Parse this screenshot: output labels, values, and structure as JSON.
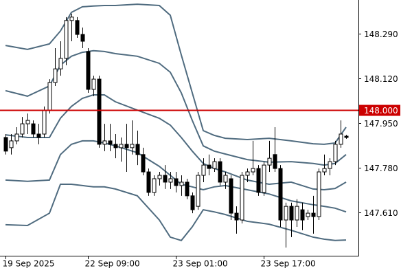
{
  "chart_data": {
    "type": "candlestick",
    "categories": [
      "19 Sep 2025",
      null,
      null,
      null,
      null,
      null,
      null,
      null,
      null,
      null,
      null,
      null,
      null,
      null,
      null,
      "22 Sep 09:00",
      null,
      null,
      null,
      null,
      null,
      null,
      null,
      null,
      null,
      null,
      null,
      null,
      null,
      null,
      null,
      "23 Sep 01:00",
      null,
      null,
      null,
      null,
      null,
      null,
      null,
      null,
      null,
      null,
      null,
      null,
      null,
      null,
      null,
      "23 Sep 17:00",
      null,
      null,
      null,
      null,
      null,
      null,
      null,
      null,
      null,
      null,
      null,
      null,
      null,
      null,
      null
    ],
    "open": [
      147.895,
      147.856,
      147.882,
      147.908,
      147.947,
      147.947,
      147.908,
      147.908,
      147.999,
      148.104,
      148.156,
      148.196,
      148.34,
      148.34,
      148.287,
      148.222,
      148.078,
      148.117,
      147.869,
      147.882,
      147.869,
      147.856,
      147.869,
      147.856,
      147.869,
      147.83,
      147.764,
      147.686,
      147.738,
      147.751,
      147.725,
      147.738,
      147.712,
      147.725,
      147.673,
      147.633,
      147.751,
      147.79,
      147.777,
      147.803,
      147.725,
      147.738,
      147.607,
      147.581,
      147.751,
      147.764,
      147.777,
      147.686,
      147.79,
      147.83,
      147.777,
      147.581,
      147.633,
      147.581,
      147.62,
      147.594,
      147.607,
      147.594,
      147.764,
      147.777,
      147.803,
      147.869,
      147.9
    ],
    "high": [
      147.908,
      147.908,
      147.934,
      147.973,
      147.986,
      147.96,
      147.947,
      148.013,
      148.117,
      148.235,
      148.261,
      148.353,
      148.366,
      148.353,
      148.313,
      148.235,
      148.13,
      148.13,
      147.947,
      147.947,
      147.908,
      147.895,
      147.947,
      147.96,
      147.921,
      147.856,
      147.777,
      147.751,
      147.764,
      147.79,
      147.764,
      147.764,
      147.751,
      147.738,
      147.686,
      147.764,
      147.816,
      147.83,
      147.816,
      147.816,
      147.764,
      147.751,
      147.633,
      147.764,
      147.777,
      147.882,
      147.79,
      147.803,
      147.882,
      147.934,
      147.79,
      147.647,
      147.647,
      147.66,
      147.647,
      147.62,
      147.673,
      147.777,
      147.83,
      147.816,
      147.882,
      147.96,
      147.905
    ],
    "low": [
      147.83,
      147.83,
      147.869,
      147.895,
      147.908,
      147.895,
      147.869,
      147.895,
      147.986,
      148.091,
      148.13,
      148.17,
      148.261,
      148.274,
      148.235,
      148.065,
      148.052,
      147.856,
      147.843,
      147.843,
      147.816,
      147.803,
      147.764,
      147.83,
      147.79,
      147.751,
      147.673,
      147.673,
      147.712,
      147.699,
      147.699,
      147.686,
      147.673,
      147.66,
      147.607,
      147.62,
      147.725,
      147.751,
      147.764,
      147.712,
      147.699,
      147.581,
      147.529,
      147.568,
      147.725,
      147.751,
      147.673,
      147.673,
      147.764,
      147.764,
      147.555,
      147.476,
      147.516,
      147.555,
      147.542,
      147.581,
      147.529,
      147.581,
      147.751,
      147.751,
      147.79,
      147.856,
      147.89
    ],
    "close": [
      147.843,
      147.882,
      147.908,
      147.947,
      147.96,
      147.908,
      147.895,
      147.999,
      148.104,
      148.156,
      148.196,
      148.34,
      148.353,
      148.287,
      148.261,
      148.078,
      148.117,
      147.869,
      147.882,
      147.869,
      147.856,
      147.869,
      147.856,
      147.869,
      147.83,
      147.764,
      147.686,
      147.738,
      147.751,
      147.725,
      147.738,
      147.712,
      147.725,
      147.673,
      147.62,
      147.751,
      147.79,
      147.777,
      147.803,
      147.725,
      147.751,
      147.607,
      147.581,
      147.751,
      147.764,
      147.777,
      147.686,
      147.79,
      147.816,
      147.777,
      147.581,
      147.633,
      147.581,
      147.633,
      147.581,
      147.607,
      147.594,
      147.764,
      147.777,
      147.803,
      147.869,
      147.908,
      147.895
    ],
    "colors": {
      "rise": "#ffffff",
      "fall": "#000000",
      "wick": "#000000"
    },
    "bands": {
      "color": "#4f6b7f",
      "x": [
        0,
        4,
        8,
        10,
        12,
        14,
        16,
        18,
        20,
        24,
        28,
        30,
        32,
        34,
        36,
        38,
        40,
        44,
        48,
        52,
        56,
        58,
        60,
        62
      ],
      "series": [
        {
          "values": [
            148.245,
            148.23,
            148.251,
            148.3,
            148.371,
            148.392,
            148.395,
            148.397,
            148.397,
            148.402,
            148.397,
            148.36,
            148.209,
            148.065,
            147.921,
            147.903,
            147.892,
            147.887,
            147.892,
            147.882,
            147.871,
            147.869,
            147.874,
            147.934
          ]
        },
        {
          "values": [
            148.073,
            148.052,
            148.091,
            148.17,
            148.204,
            148.219,
            148.225,
            148.222,
            148.214,
            148.204,
            148.177,
            148.143,
            148.065,
            147.96,
            147.863,
            147.843,
            147.832,
            147.811,
            147.801,
            147.803,
            147.796,
            147.79,
            147.796,
            147.83
          ]
        },
        {
          "values": [
            147.905,
            147.895,
            147.895,
            147.968,
            148.013,
            148.044,
            148.057,
            148.057,
            148.031,
            147.999,
            147.968,
            147.942,
            147.895,
            147.843,
            147.796,
            147.777,
            147.764,
            147.733,
            147.717,
            147.725,
            147.699,
            147.696,
            147.701,
            147.725
          ]
        },
        {
          "values": [
            147.733,
            147.728,
            147.733,
            147.83,
            147.869,
            147.882,
            147.882,
            147.874,
            147.863,
            147.837,
            147.785,
            147.751,
            147.717,
            147.707,
            147.696,
            147.707,
            147.712,
            147.696,
            147.68,
            147.654,
            147.639,
            147.633,
            147.626,
            147.612
          ]
        },
        {
          "values": [
            147.563,
            147.56,
            147.607,
            147.717,
            147.717,
            147.712,
            147.707,
            147.707,
            147.699,
            147.673,
            147.581,
            147.516,
            147.503,
            147.555,
            147.62,
            147.612,
            147.602,
            147.576,
            147.565,
            147.542,
            147.516,
            147.508,
            147.503,
            147.505
          ]
        }
      ]
    },
    "hline": {
      "value": 148.0,
      "label": "148.000",
      "color": "#cc0000"
    },
    "ylim": [
      147.445,
      148.418
    ],
    "yticks": [
      {
        "value": 148.29,
        "label": "148.290"
      },
      {
        "value": 148.12,
        "label": "148.120"
      },
      {
        "value": 147.95,
        "label": "147.950"
      },
      {
        "value": 147.78,
        "label": "147.780"
      },
      {
        "value": 147.61,
        "label": "147.610"
      }
    ]
  }
}
